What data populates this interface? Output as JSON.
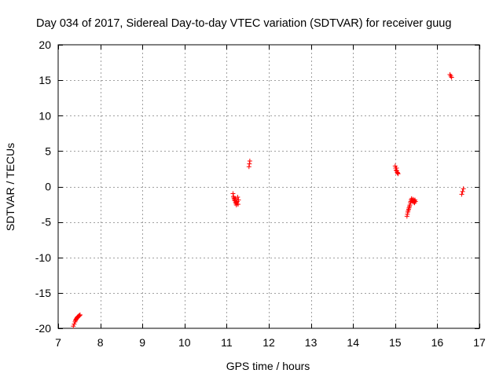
{
  "chart_data": {
    "type": "scatter",
    "title": "Day 034 of 2017, Sidereal Day-to-day VTEC variation (SDTVAR) for receiver guug",
    "xlabel": "GPS time / hours",
    "ylabel": "SDTVAR / TECUs",
    "xlim": [
      7,
      17
    ],
    "ylim": [
      -20,
      20
    ],
    "xticks": [
      7,
      8,
      9,
      10,
      11,
      12,
      13,
      14,
      15,
      16,
      17
    ],
    "yticks": [
      -20,
      -15,
      -10,
      -5,
      0,
      5,
      10,
      15,
      20
    ],
    "grid": true,
    "legend": "none",
    "series": [
      {
        "color": "#ff0000",
        "marker": "plus",
        "points": [
          [
            7.36,
            -19.7
          ],
          [
            7.38,
            -19.4
          ],
          [
            7.4,
            -19.1
          ],
          [
            7.41,
            -18.9
          ],
          [
            7.42,
            -18.8
          ],
          [
            7.43,
            -18.7
          ],
          [
            7.44,
            -18.6
          ],
          [
            7.45,
            -18.5
          ],
          [
            7.46,
            -18.4
          ],
          [
            7.47,
            -18.4
          ],
          [
            7.48,
            -18.3
          ],
          [
            7.49,
            -18.3
          ],
          [
            7.5,
            -18.2
          ],
          [
            7.51,
            -18.2
          ],
          [
            7.52,
            -18.1
          ],
          [
            11.15,
            -1.0
          ],
          [
            11.16,
            -1.4
          ],
          [
            11.17,
            -1.6
          ],
          [
            11.18,
            -1.8
          ],
          [
            11.19,
            -2.0
          ],
          [
            11.2,
            -1.7
          ],
          [
            11.21,
            -2.2
          ],
          [
            11.22,
            -2.4
          ],
          [
            11.23,
            -2.6
          ],
          [
            11.24,
            -2.3
          ],
          [
            11.25,
            -2.1
          ],
          [
            11.26,
            -1.5
          ],
          [
            11.27,
            -2.5
          ],
          [
            11.28,
            -1.9
          ],
          [
            11.53,
            2.8
          ],
          [
            11.54,
            3.2
          ],
          [
            11.55,
            3.6
          ],
          [
            15.0,
            2.9
          ],
          [
            15.01,
            2.6
          ],
          [
            15.02,
            2.3
          ],
          [
            15.03,
            2.6
          ],
          [
            15.04,
            2.2
          ],
          [
            15.05,
            2.0
          ],
          [
            15.06,
            1.9
          ],
          [
            15.07,
            1.8
          ],
          [
            15.28,
            -4.2
          ],
          [
            15.29,
            -3.9
          ],
          [
            15.3,
            -3.6
          ],
          [
            15.31,
            -3.4
          ],
          [
            15.32,
            -3.2
          ],
          [
            15.33,
            -3.0
          ],
          [
            15.34,
            -2.8
          ],
          [
            15.35,
            -2.6
          ],
          [
            15.36,
            -2.3
          ],
          [
            15.37,
            -2.1
          ],
          [
            15.38,
            -1.9
          ],
          [
            15.39,
            -1.7
          ],
          [
            15.4,
            -1.9
          ],
          [
            15.41,
            -2.1
          ],
          [
            15.42,
            -2.0
          ],
          [
            15.43,
            -1.8
          ],
          [
            15.44,
            -2.2
          ],
          [
            15.45,
            -2.0
          ],
          [
            15.46,
            -2.3
          ],
          [
            15.47,
            -1.9
          ],
          [
            15.48,
            -2.1
          ],
          [
            16.3,
            15.8
          ],
          [
            16.32,
            15.6
          ],
          [
            16.34,
            15.4
          ],
          [
            16.58,
            -1.1
          ],
          [
            16.6,
            -0.7
          ],
          [
            16.62,
            -0.3
          ]
        ]
      }
    ]
  }
}
